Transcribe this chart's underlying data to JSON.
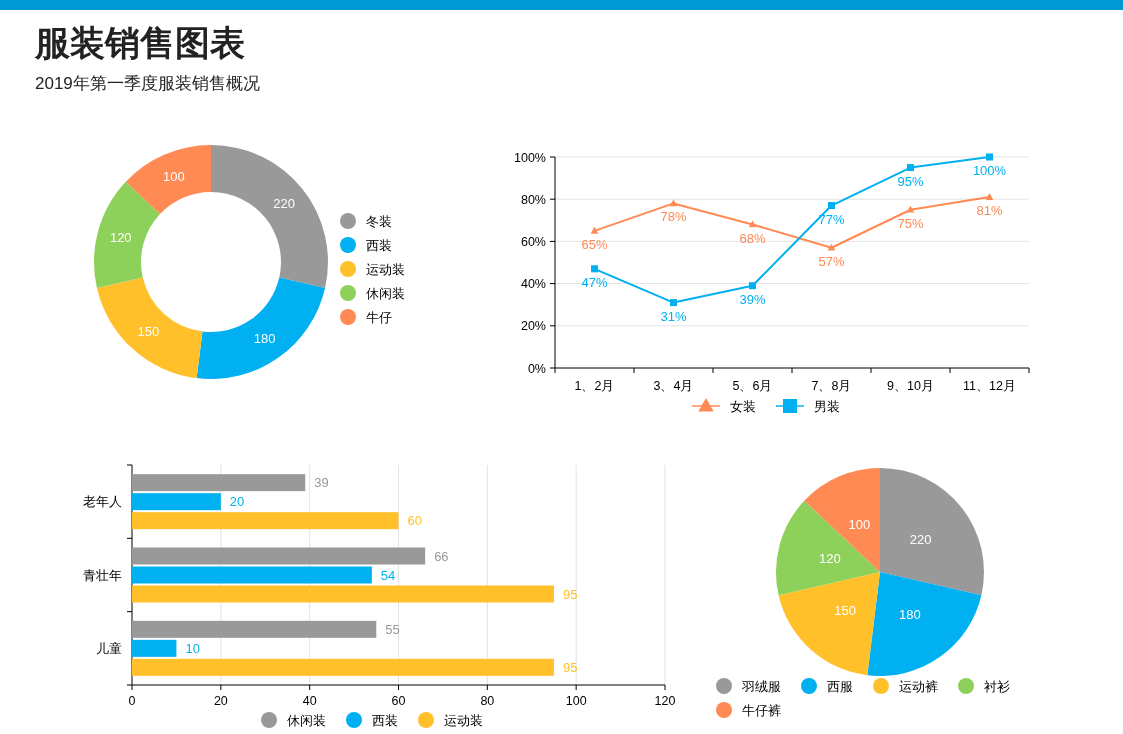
{
  "chart_data": [
    {
      "type": "donut",
      "title": "服装销售图表",
      "subtitle": "2019年第一季度服装销售概况",
      "categories": [
        "冬装",
        "西装",
        "运动装",
        "休闲装",
        "牛仔"
      ],
      "values": [
        220,
        180,
        150,
        120,
        100
      ],
      "colors": [
        "#999999",
        "#00b0f0",
        "#ffc02a",
        "#8dd15a",
        "#ff8a54"
      ],
      "data_labels": true,
      "legend": "right"
    },
    {
      "type": "line",
      "categories": [
        "1、2月",
        "3、4月",
        "5、6月",
        "7、8月",
        "9、10月",
        "11、12月"
      ],
      "ylim": [
        0,
        100
      ],
      "yticks": [
        {
          "value": 0,
          "label": "0%"
        },
        {
          "value": 20,
          "label": "20%"
        },
        {
          "value": 40,
          "label": "40%"
        },
        {
          "value": 60,
          "label": "60%"
        },
        {
          "value": 80,
          "label": "80%"
        },
        {
          "value": 100,
          "label": "100%"
        }
      ],
      "grid": "y",
      "legend": "bottom",
      "series": [
        {
          "name": "女装",
          "color": "#ff8a54",
          "marker": "triangle",
          "values": [
            65,
            78,
            68,
            57,
            75,
            81
          ],
          "value_labels": [
            "65%",
            "78%",
            "68%",
            "57%",
            "75%",
            "81%"
          ]
        },
        {
          "name": "男装",
          "color": "#00b0f0",
          "marker": "square",
          "values": [
            47,
            31,
            39,
            77,
            95,
            100
          ],
          "value_labels": [
            "47%",
            "31%",
            "39%",
            "77%",
            "95%",
            "100%"
          ]
        }
      ]
    },
    {
      "type": "bar",
      "orientation": "horizontal",
      "categories": [
        "老年人",
        "青壮年",
        "儿童"
      ],
      "xlim": [
        0,
        120
      ],
      "xticks": [
        0,
        20,
        40,
        60,
        80,
        100,
        120
      ],
      "grid": "x",
      "data_labels": true,
      "legend": "bottom",
      "series": [
        {
          "name": "休闲装",
          "color": "#999999",
          "values": [
            39,
            66,
            55
          ]
        },
        {
          "name": "西装",
          "color": "#00b0f0",
          "values": [
            20,
            54,
            10
          ]
        },
        {
          "name": "运动装",
          "color": "#ffc02a",
          "values": [
            60,
            95,
            95
          ]
        }
      ]
    },
    {
      "type": "pie",
      "categories": [
        "羽绒服",
        "西服",
        "运动裤",
        "衬衫",
        "牛仔裤"
      ],
      "values": [
        220,
        180,
        150,
        120,
        100
      ],
      "colors": [
        "#999999",
        "#00b0f0",
        "#ffc02a",
        "#8dd15a",
        "#ff8a54"
      ],
      "data_labels": true,
      "legend": "bottom"
    }
  ]
}
